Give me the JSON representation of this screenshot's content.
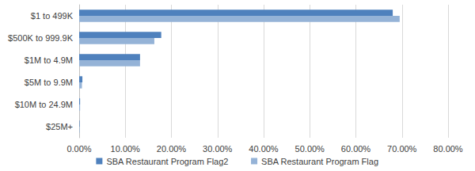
{
  "chart_data": {
    "type": "bar",
    "orientation": "horizontal",
    "categories": [
      "$1 to 499K",
      "$500K to 999.9K",
      "$1M to 4.9M",
      "$5M to 9.9M",
      "$10M to 24.9M",
      "$25M+"
    ],
    "series": [
      {
        "name": "SBA Restaurant Program Flag2",
        "color": "#4f81bd",
        "values": [
          68.0,
          17.8,
          13.2,
          0.7,
          0.2,
          0.1
        ]
      },
      {
        "name": "SBA Restaurant Program Flag",
        "color": "#95b3d7",
        "values": [
          69.5,
          16.3,
          13.2,
          0.6,
          0.2,
          0.1
        ]
      }
    ],
    "xlim": [
      0,
      80
    ],
    "xticks": [
      {
        "value": 0,
        "label": "0.00%"
      },
      {
        "value": 10,
        "label": "10.00%"
      },
      {
        "value": 20,
        "label": "20.00%"
      },
      {
        "value": 30,
        "label": "30.00%"
      },
      {
        "value": 40,
        "label": "40.00%"
      },
      {
        "value": 50,
        "label": "50.00%"
      },
      {
        "value": 60,
        "label": "60.00%"
      },
      {
        "value": 70,
        "label": "70.00%"
      },
      {
        "value": 80,
        "label": "80.00%"
      }
    ],
    "grid": true,
    "legend": "bottom"
  }
}
